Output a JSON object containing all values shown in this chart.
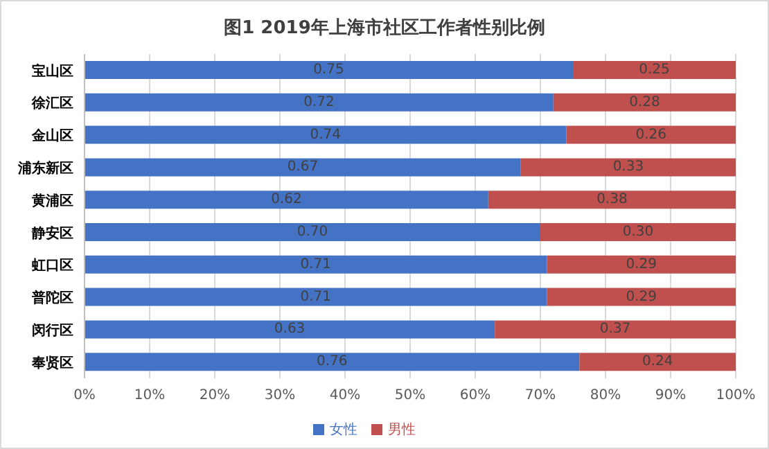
{
  "chart_data": {
    "type": "bar",
    "title": "图1  2019年上海市社区工作者性别比例",
    "orientation": "horizontal",
    "stacked": true,
    "categories": [
      "宝山区",
      "徐汇区",
      "金山区",
      "浦东新区",
      "黄浦区",
      "静安区",
      "虹口区",
      "普陀区",
      "闵行区",
      "奉贤区"
    ],
    "series": [
      {
        "name": "女性",
        "color": "#4472c4",
        "values": [
          0.75,
          0.72,
          0.74,
          0.67,
          0.62,
          0.7,
          0.71,
          0.71,
          0.63,
          0.76
        ],
        "value_labels": [
          "0.75",
          "0.72",
          "0.74",
          "0.67",
          "0.62",
          "0.70",
          "0.71",
          "0.71",
          "0.63",
          "0.76"
        ]
      },
      {
        "name": "男性",
        "color": "#c0504d",
        "values": [
          0.25,
          0.28,
          0.26,
          0.33,
          0.38,
          0.3,
          0.29,
          0.29,
          0.37,
          0.24
        ],
        "value_labels": [
          "0.25",
          "0.28",
          "0.26",
          "0.33",
          "0.38",
          "0.30",
          "0.29",
          "0.29",
          "0.37",
          "0.24"
        ]
      }
    ],
    "xlim": [
      0,
      1
    ],
    "xticks": [
      {
        "value": 0,
        "label": "0%"
      },
      {
        "value": 0.1,
        "label": "10%"
      },
      {
        "value": 0.2,
        "label": "20%"
      },
      {
        "value": 0.3,
        "label": "30%"
      },
      {
        "value": 0.4,
        "label": "40%"
      },
      {
        "value": 0.5,
        "label": "50%"
      },
      {
        "value": 0.6,
        "label": "60%"
      },
      {
        "value": 0.7,
        "label": "70%"
      },
      {
        "value": 0.8,
        "label": "80%"
      },
      {
        "value": 0.9,
        "label": "90%"
      },
      {
        "value": 1,
        "label": "100%"
      }
    ],
    "grid": "x",
    "legend": "bottom"
  }
}
